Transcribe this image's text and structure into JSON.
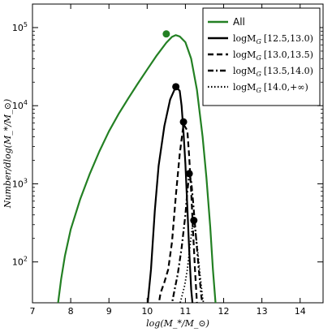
{
  "chart_data": {
    "type": "line",
    "xlabel": "log(M_*/M_⊙)",
    "ylabel": "Number/dlog(M_*/M_⊙)",
    "xlim": [
      7,
      14.6
    ],
    "ylim": [
      30,
      200000
    ],
    "y_scale": "log",
    "x_ticks": [
      7,
      8,
      9,
      10,
      11,
      12,
      13,
      14
    ],
    "y_ticks": [
      {
        "value": 100,
        "label": "10",
        "exp": "2"
      },
      {
        "value": 1000,
        "label": "10",
        "exp": "3"
      },
      {
        "value": 10000,
        "label": "10",
        "exp": "4"
      },
      {
        "value": 100000,
        "label": "10",
        "exp": "5"
      }
    ],
    "grid": false,
    "legend": "top-right",
    "series": [
      {
        "name": "All",
        "legend_math": "",
        "legend_range": "",
        "color": "#238023",
        "style": "solid",
        "width": 2.2,
        "points": [
          [
            7.65,
            25
          ],
          [
            7.75,
            60
          ],
          [
            7.85,
            120
          ],
          [
            8.0,
            260
          ],
          [
            8.25,
            640
          ],
          [
            8.5,
            1350
          ],
          [
            8.75,
            2600
          ],
          [
            9.0,
            4700
          ],
          [
            9.25,
            7800
          ],
          [
            9.5,
            12300
          ],
          [
            9.75,
            19000
          ],
          [
            10.0,
            29000
          ],
          [
            10.25,
            44000
          ],
          [
            10.5,
            64000
          ],
          [
            10.65,
            76000
          ],
          [
            10.75,
            80000
          ],
          [
            10.85,
            77000
          ],
          [
            11.0,
            65000
          ],
          [
            11.15,
            40000
          ],
          [
            11.3,
            16000
          ],
          [
            11.45,
            4000
          ],
          [
            11.55,
            1200
          ],
          [
            11.65,
            280
          ],
          [
            11.72,
            80
          ],
          [
            11.8,
            25
          ]
        ],
        "marker": [
          10.5,
          83000
        ]
      },
      {
        "name": "",
        "legend_math": "logM_G",
        "legend_range": "[12.5,13.0)",
        "color": "#000000",
        "style": "solid",
        "width": 2.2,
        "points": [
          [
            10.0,
            25
          ],
          [
            10.1,
            80
          ],
          [
            10.2,
            450
          ],
          [
            10.3,
            1700
          ],
          [
            10.45,
            5500
          ],
          [
            10.6,
            12000
          ],
          [
            10.75,
            17500
          ],
          [
            10.85,
            15500
          ],
          [
            10.9,
            10000
          ],
          [
            10.95,
            4500
          ],
          [
            11.0,
            1800
          ],
          [
            11.05,
            500
          ],
          [
            11.1,
            140
          ],
          [
            11.15,
            45
          ],
          [
            11.2,
            25
          ]
        ],
        "marker": [
          10.75,
          17500
        ]
      },
      {
        "name": "",
        "legend_math": "logM_G",
        "legend_range": "[13.0,13.5)",
        "color": "#000000",
        "style": "dashed",
        "width": 2.2,
        "points": [
          [
            10.28,
            25
          ],
          [
            10.35,
            40
          ],
          [
            10.45,
            55
          ],
          [
            10.55,
            80
          ],
          [
            10.65,
            180
          ],
          [
            10.75,
            700
          ],
          [
            10.85,
            2400
          ],
          [
            10.95,
            5800
          ],
          [
            11.05,
            4800
          ],
          [
            11.1,
            2200
          ],
          [
            11.15,
            800
          ],
          [
            11.2,
            250
          ],
          [
            11.25,
            80
          ],
          [
            11.3,
            30
          ]
        ],
        "marker": [
          10.95,
          6200
        ]
      },
      {
        "name": "",
        "legend_math": "logM_G",
        "legend_range": "[13.5,14.0)",
        "color": "#000000",
        "style": "dashdot",
        "width": 2.2,
        "points": [
          [
            10.62,
            25
          ],
          [
            10.7,
            40
          ],
          [
            10.8,
            70
          ],
          [
            10.9,
            150
          ],
          [
            11.0,
            400
          ],
          [
            11.05,
            800
          ],
          [
            11.1,
            1300
          ],
          [
            11.15,
            1100
          ],
          [
            11.2,
            600
          ],
          [
            11.28,
            200
          ],
          [
            11.35,
            80
          ],
          [
            11.42,
            35
          ],
          [
            11.48,
            25
          ]
        ],
        "marker": [
          11.1,
          1350
        ]
      },
      {
        "name": "",
        "legend_math": "logM_G",
        "legend_range": "[14.0,+∞)",
        "color": "#000000",
        "style": "dotted",
        "width": 1.8,
        "points": [
          [
            10.82,
            25
          ],
          [
            10.9,
            35
          ],
          [
            10.98,
            50
          ],
          [
            11.05,
            80
          ],
          [
            11.12,
            160
          ],
          [
            11.2,
            330
          ],
          [
            11.26,
            250
          ],
          [
            11.32,
            140
          ],
          [
            11.38,
            70
          ],
          [
            11.45,
            35
          ],
          [
            11.5,
            25
          ]
        ],
        "marker": [
          11.22,
          340
        ]
      }
    ]
  }
}
